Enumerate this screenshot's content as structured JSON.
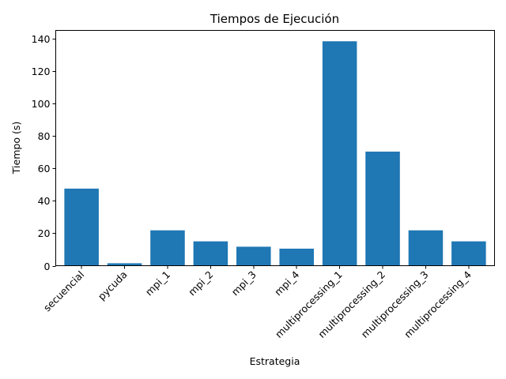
{
  "chart_data": {
    "type": "bar",
    "title": "Tiempos de Ejecución",
    "xlabel": "Estrategia",
    "ylabel": "Tiempo (s)",
    "categories": [
      "secuencial",
      "pycuda",
      "mpi_1",
      "mpi_2",
      "mpi_3",
      "mpi_4",
      "multiprocessing_1",
      "multiprocessing_2",
      "multiprocessing_3",
      "multiprocessing_4"
    ],
    "values": [
      47.5,
      1.5,
      21.8,
      15.0,
      11.7,
      10.5,
      138.3,
      70.3,
      21.8,
      15.0
    ],
    "ylim": [
      0,
      145
    ],
    "yticks": [
      "0",
      "20",
      "40",
      "60",
      "80",
      "100",
      "120",
      "140"
    ],
    "bar_color": "#1f77b4",
    "grid": false
  }
}
